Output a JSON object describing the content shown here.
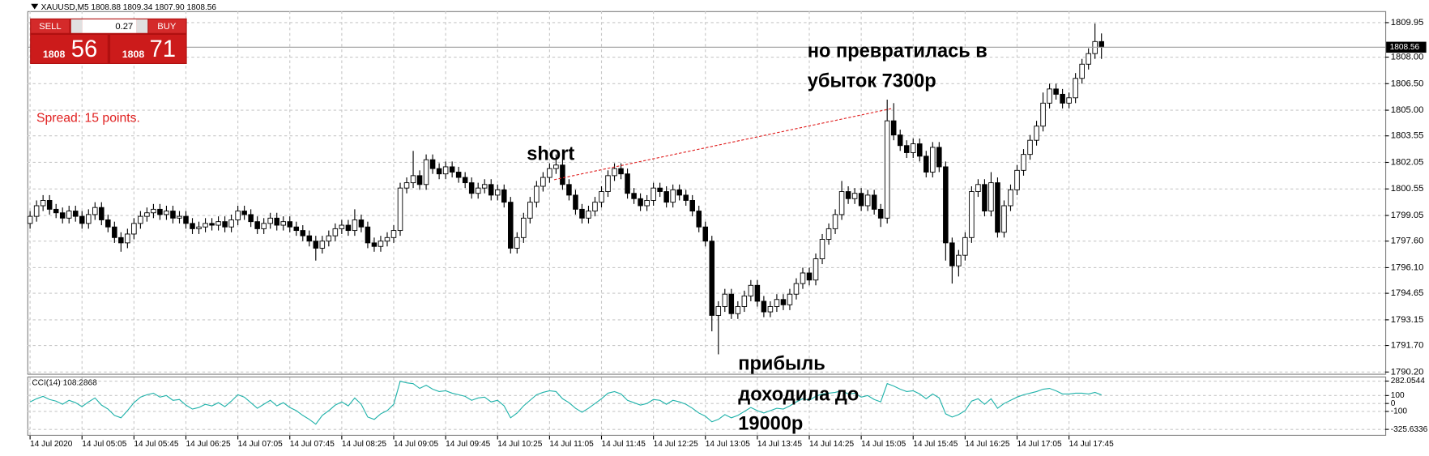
{
  "window": {
    "header": "XAUUSD,M5  1808.88 1809.34 1807.90 1808.56",
    "trade_panel": {
      "sell": "SELL",
      "lot": "0.27",
      "buy": "BUY",
      "bid_big": "1808",
      "bid_small": "56",
      "ask_big": "1808",
      "ask_small": "71"
    },
    "spread": "Spread: 15 points."
  },
  "chart_data": [
    {
      "type": "candlestick",
      "annotations": [
        "short",
        "но превратилась в",
        "убыток 7300р",
        "прибыль",
        "доходила до",
        "19000р"
      ],
      "categories": [
        "14 Jul 2020",
        null,
        null,
        null,
        null,
        null,
        null,
        null,
        "14 Jul 05:05",
        null,
        null,
        null,
        null,
        null,
        null,
        null,
        "14 Jul 05:45",
        null,
        null,
        null,
        null,
        null,
        null,
        null,
        "14 Jul 06:25",
        null,
        null,
        null,
        null,
        null,
        null,
        null,
        "14 Jul 07:05",
        null,
        null,
        null,
        null,
        null,
        null,
        null,
        "14 Jul 07:45",
        null,
        null,
        null,
        null,
        null,
        null,
        null,
        "14 Jul 08:25",
        null,
        null,
        null,
        null,
        null,
        null,
        null,
        "14 Jul 09:05",
        null,
        null,
        null,
        null,
        null,
        null,
        null,
        "14 Jul 09:45",
        null,
        null,
        null,
        null,
        null,
        null,
        null,
        "14 Jul 10:25",
        null,
        null,
        null,
        null,
        null,
        null,
        null,
        "14 Jul 11:05",
        null,
        null,
        null,
        null,
        null,
        null,
        null,
        "14 Jul 11:45",
        null,
        null,
        null,
        null,
        null,
        null,
        null,
        "14 Jul 12:25",
        null,
        null,
        null,
        null,
        null,
        null,
        null,
        "14 Jul 13:05",
        null,
        null,
        null,
        null,
        null,
        null,
        null,
        "14 Jul 13:45",
        null,
        null,
        null,
        null,
        null,
        null,
        null,
        "14 Jul 14:25",
        null,
        null,
        null,
        null,
        null,
        null,
        null,
        "14 Jul 15:05",
        null,
        null,
        null,
        null,
        null,
        null,
        null,
        "14 Jul 15:45",
        null,
        null,
        null,
        null,
        null,
        null,
        null,
        "14 Jul 16:25",
        null,
        null,
        null,
        null,
        null,
        null,
        null,
        "14 Jul 17:05",
        null,
        null,
        null,
        null,
        null,
        null,
        null,
        "14 Jul 17:45",
        null,
        null,
        null,
        null,
        null
      ],
      "open": [
        1798.6,
        1799.0,
        1799.6,
        1799.9,
        1799.4,
        1799.2,
        1798.9,
        1799.3,
        1799.0,
        1798.6,
        1799.1,
        1799.5,
        1798.8,
        1798.4,
        1797.8,
        1797.5,
        1798.0,
        1798.6,
        1799.0,
        1799.2,
        1799.4,
        1799.1,
        1799.3,
        1798.9,
        1799.0,
        1798.6,
        1798.3,
        1798.4,
        1798.6,
        1798.5,
        1798.7,
        1798.4,
        1798.8,
        1799.3,
        1799.1,
        1798.7,
        1798.3,
        1798.6,
        1798.9,
        1798.5,
        1798.7,
        1798.4,
        1798.2,
        1797.9,
        1797.6,
        1797.2,
        1797.6,
        1797.9,
        1798.3,
        1798.5,
        1798.2,
        1798.8,
        1798.4,
        1797.5,
        1797.3,
        1797.6,
        1797.8,
        1798.2,
        1800.6,
        1800.9,
        1801.3,
        1800.8,
        1802.2,
        1801.7,
        1801.4,
        1801.8,
        1801.5,
        1801.2,
        1800.9,
        1800.3,
        1800.6,
        1800.8,
        1800.2,
        1800.5,
        1799.8,
        1797.2,
        1797.8,
        1798.9,
        1799.8,
        1800.7,
        1801.2,
        1801.7,
        1801.9,
        1800.8,
        1800.2,
        1799.4,
        1798.9,
        1799.3,
        1799.8,
        1800.4,
        1801.3,
        1801.7,
        1801.4,
        1800.3,
        1800.0,
        1799.6,
        1799.9,
        1800.6,
        1800.4,
        1799.8,
        1800.5,
        1800.2,
        1799.9,
        1799.3,
        1798.4,
        1797.6,
        1793.4,
        1793.9,
        1794.6,
        1793.5,
        1793.9,
        1794.5,
        1795.1,
        1794.2,
        1793.6,
        1793.9,
        1794.3,
        1794.0,
        1794.6,
        1795.2,
        1795.8,
        1795.4,
        1796.6,
        1797.7,
        1798.3,
        1799.1,
        1800.4,
        1800.0,
        1800.3,
        1799.6,
        1800.2,
        1799.4,
        1798.9,
        1804.4,
        1803.6,
        1803.0,
        1802.6,
        1803.1,
        1802.4,
        1801.5,
        1802.9,
        1801.8,
        1797.5,
        1796.2,
        1796.8,
        1797.8,
        1800.4,
        1800.8,
        1799.3,
        1800.9,
        1798.1,
        1799.6,
        1800.5,
        1801.6,
        1802.5,
        1803.3,
        1804.1,
        1805.4,
        1806.2,
        1805.9,
        1805.4,
        1805.7,
        1806.8,
        1807.6,
        1808.2,
        1808.88
      ],
      "high": [
        1799.3,
        1799.9,
        1800.2,
        1800.2,
        1799.7,
        1799.5,
        1799.6,
        1799.6,
        1799.3,
        1799.4,
        1799.8,
        1799.8,
        1799.1,
        1798.7,
        1798.1,
        1798.3,
        1798.9,
        1799.3,
        1799.5,
        1799.7,
        1799.7,
        1799.6,
        1799.6,
        1799.3,
        1799.3,
        1798.9,
        1798.7,
        1798.9,
        1798.9,
        1799.0,
        1799.0,
        1799.1,
        1799.6,
        1799.6,
        1799.4,
        1799.0,
        1798.9,
        1799.2,
        1799.2,
        1799.0,
        1799.0,
        1798.7,
        1798.5,
        1798.2,
        1797.9,
        1797.9,
        1798.2,
        1798.6,
        1798.8,
        1798.8,
        1799.4,
        1799.1,
        1798.7,
        1797.8,
        1797.9,
        1798.1,
        1798.5,
        1800.9,
        1801.2,
        1802.7,
        1801.6,
        1802.5,
        1802.5,
        1802.0,
        1802.1,
        1802.1,
        1801.8,
        1801.5,
        1801.2,
        1800.9,
        1801.1,
        1801.1,
        1800.8,
        1800.8,
        1800.1,
        1798.1,
        1799.2,
        1800.1,
        1801.0,
        1801.5,
        1802.0,
        1802.5,
        1802.2,
        1801.1,
        1800.5,
        1799.7,
        1799.6,
        1800.1,
        1800.7,
        1801.6,
        1802.0,
        1802.0,
        1801.7,
        1800.6,
        1800.3,
        1800.2,
        1800.9,
        1800.9,
        1800.7,
        1800.8,
        1800.8,
        1800.5,
        1800.2,
        1799.6,
        1798.7,
        1797.9,
        1794.2,
        1794.9,
        1794.9,
        1794.2,
        1794.8,
        1795.4,
        1795.4,
        1794.5,
        1794.2,
        1794.6,
        1794.6,
        1794.9,
        1795.5,
        1796.1,
        1796.1,
        1796.9,
        1798.0,
        1798.6,
        1799.4,
        1801.0,
        1800.7,
        1800.6,
        1800.6,
        1800.5,
        1800.5,
        1799.7,
        1805.6,
        1805.4,
        1803.9,
        1803.3,
        1803.4,
        1803.4,
        1802.7,
        1803.2,
        1803.2,
        1802.1,
        1797.8,
        1797.1,
        1798.1,
        1800.7,
        1801.1,
        1801.1,
        1801.5,
        1801.2,
        1799.9,
        1800.8,
        1801.9,
        1802.8,
        1803.6,
        1804.4,
        1806.0,
        1806.5,
        1806.5,
        1806.2,
        1806.0,
        1807.1,
        1807.9,
        1808.5,
        1809.9,
        1809.34
      ],
      "low": [
        1798.3,
        1798.7,
        1799.3,
        1799.1,
        1798.9,
        1798.6,
        1798.6,
        1798.7,
        1798.3,
        1798.3,
        1798.8,
        1798.5,
        1798.1,
        1797.5,
        1797.0,
        1797.2,
        1797.7,
        1798.3,
        1798.7,
        1798.9,
        1798.8,
        1798.8,
        1798.6,
        1798.6,
        1798.3,
        1798.0,
        1798.0,
        1798.1,
        1798.2,
        1798.2,
        1798.1,
        1798.1,
        1798.5,
        1798.8,
        1798.4,
        1798.0,
        1798.0,
        1798.3,
        1798.2,
        1798.2,
        1798.1,
        1797.9,
        1797.6,
        1797.3,
        1796.5,
        1796.9,
        1797.3,
        1797.6,
        1798.0,
        1797.9,
        1797.9,
        1798.1,
        1797.2,
        1797.0,
        1797.0,
        1797.3,
        1797.5,
        1797.9,
        1800.3,
        1800.6,
        1800.5,
        1800.5,
        1801.4,
        1801.1,
        1801.1,
        1801.2,
        1800.9,
        1800.6,
        1800.0,
        1800.0,
        1800.3,
        1799.9,
        1799.9,
        1799.5,
        1796.9,
        1796.9,
        1797.5,
        1798.6,
        1799.5,
        1800.4,
        1800.9,
        1801.4,
        1800.5,
        1799.9,
        1799.1,
        1798.6,
        1798.6,
        1799.0,
        1799.5,
        1800.1,
        1801.0,
        1801.1,
        1800.0,
        1799.7,
        1799.3,
        1799.3,
        1799.6,
        1800.1,
        1799.5,
        1799.5,
        1799.9,
        1799.6,
        1799.0,
        1798.1,
        1797.3,
        1792.5,
        1791.2,
        1793.6,
        1793.2,
        1793.2,
        1793.6,
        1794.2,
        1793.9,
        1793.3,
        1793.3,
        1793.6,
        1793.7,
        1793.7,
        1794.3,
        1794.9,
        1795.1,
        1795.1,
        1796.3,
        1797.4,
        1798.0,
        1798.8,
        1799.7,
        1799.7,
        1799.3,
        1799.3,
        1799.1,
        1798.4,
        1798.6,
        1803.3,
        1802.7,
        1802.3,
        1802.3,
        1802.1,
        1801.2,
        1801.2,
        1801.5,
        1796.5,
        1795.2,
        1795.6,
        1796.5,
        1797.5,
        1800.1,
        1799.0,
        1799.0,
        1797.8,
        1797.8,
        1799.3,
        1800.2,
        1801.3,
        1802.2,
        1803.0,
        1803.8,
        1805.1,
        1805.6,
        1805.1,
        1805.1,
        1805.4,
        1806.5,
        1807.3,
        1807.9,
        1807.9
      ],
      "close": [
        1799.0,
        1799.6,
        1799.9,
        1799.4,
        1799.2,
        1798.9,
        1799.3,
        1799.0,
        1798.6,
        1799.1,
        1799.5,
        1798.8,
        1798.4,
        1797.8,
        1797.5,
        1798.0,
        1798.6,
        1799.0,
        1799.2,
        1799.4,
        1799.1,
        1799.3,
        1798.9,
        1799.0,
        1798.6,
        1798.3,
        1798.4,
        1798.6,
        1798.5,
        1798.7,
        1798.4,
        1798.8,
        1799.3,
        1799.1,
        1798.7,
        1798.3,
        1798.6,
        1798.9,
        1798.5,
        1798.7,
        1798.4,
        1798.2,
        1797.9,
        1797.6,
        1797.2,
        1797.6,
        1797.9,
        1798.3,
        1798.5,
        1798.2,
        1798.8,
        1798.4,
        1797.5,
        1797.3,
        1797.6,
        1797.8,
        1798.2,
        1800.6,
        1800.9,
        1801.3,
        1800.8,
        1802.2,
        1801.7,
        1801.4,
        1801.8,
        1801.5,
        1801.2,
        1800.9,
        1800.3,
        1800.6,
        1800.8,
        1800.2,
        1800.5,
        1799.8,
        1797.2,
        1797.8,
        1798.9,
        1799.8,
        1800.7,
        1801.2,
        1801.7,
        1801.9,
        1800.8,
        1800.2,
        1799.4,
        1798.9,
        1799.3,
        1799.8,
        1800.4,
        1801.3,
        1801.7,
        1801.4,
        1800.3,
        1800.0,
        1799.6,
        1799.9,
        1800.6,
        1800.4,
        1799.8,
        1800.5,
        1800.2,
        1799.9,
        1799.3,
        1798.4,
        1797.6,
        1793.4,
        1793.9,
        1794.6,
        1793.5,
        1793.9,
        1794.5,
        1795.1,
        1794.2,
        1793.6,
        1793.9,
        1794.3,
        1794.0,
        1794.6,
        1795.2,
        1795.8,
        1795.4,
        1796.6,
        1797.7,
        1798.3,
        1799.1,
        1800.4,
        1800.0,
        1800.3,
        1799.6,
        1800.2,
        1799.4,
        1798.9,
        1804.4,
        1803.6,
        1803.0,
        1802.6,
        1803.1,
        1802.4,
        1801.5,
        1802.9,
        1801.8,
        1797.5,
        1796.2,
        1796.8,
        1797.8,
        1800.4,
        1800.8,
        1799.3,
        1800.9,
        1798.1,
        1799.6,
        1800.5,
        1801.6,
        1802.5,
        1803.3,
        1804.1,
        1805.4,
        1806.2,
        1805.9,
        1805.4,
        1805.7,
        1806.8,
        1807.6,
        1808.2,
        1808.88,
        1808.56
      ],
      "up_color": "#ffffff",
      "down_color": "#000000",
      "ylim": [
        1790.1,
        1810.6
      ],
      "yticks": [
        1809.95,
        {
          "value": 1808,
          "label": "1808.00"
        },
        {
          "value": 1806.5,
          "label": "1806.50"
        },
        {
          "value": 1805,
          "label": "1805.00"
        },
        1803.55,
        1802.05,
        1800.55,
        1799.05,
        {
          "value": 1797.6,
          "label": "1797.60"
        },
        {
          "value": 1796.1,
          "label": "1796.10"
        },
        1794.65,
        1793.15,
        {
          "value": 1791.7,
          "label": "1791.70"
        },
        {
          "value": 1790.2,
          "label": "1790.20"
        }
      ],
      "grid": true
    },
    {
      "type": "line",
      "title": "CCI(14) 108.2868",
      "color": "#20b2aa",
      "values": [
        20,
        60,
        90,
        50,
        30,
        -10,
        40,
        10,
        -40,
        20,
        70,
        -20,
        -70,
        -150,
        -180,
        -90,
        10,
        80,
        110,
        130,
        80,
        100,
        40,
        50,
        -20,
        -70,
        -50,
        -10,
        -30,
        10,
        -40,
        30,
        110,
        80,
        10,
        -60,
        -10,
        40,
        -30,
        10,
        -50,
        -90,
        -150,
        -200,
        -260,
        -150,
        -90,
        -20,
        20,
        -30,
        70,
        -10,
        -170,
        -200,
        -130,
        -90,
        -10,
        280,
        260,
        250,
        190,
        230,
        180,
        150,
        160,
        130,
        110,
        90,
        40,
        70,
        80,
        20,
        40,
        -30,
        -180,
        -120,
        -30,
        40,
        110,
        140,
        160,
        150,
        60,
        10,
        -60,
        -110,
        -60,
        0,
        60,
        130,
        150,
        120,
        40,
        10,
        -20,
        0,
        50,
        40,
        -10,
        40,
        20,
        -10,
        -60,
        -120,
        -160,
        -230,
        -200,
        -140,
        -180,
        -150,
        -100,
        -50,
        -90,
        -120,
        -90,
        -60,
        -70,
        -30,
        20,
        60,
        40,
        90,
        120,
        130,
        140,
        160,
        120,
        130,
        80,
        100,
        50,
        20,
        250,
        220,
        180,
        150,
        160,
        120,
        60,
        120,
        70,
        -130,
        -170,
        -140,
        -90,
        30,
        60,
        -10,
        60,
        -60,
        0,
        40,
        80,
        110,
        130,
        150,
        180,
        190,
        160,
        120,
        120,
        130,
        130,
        120,
        140,
        108.2868
      ],
      "ylim": [
        -325.6336,
        282.0544
      ],
      "yticks": [
        282.0544,
        100,
        0,
        -100,
        -325.6336
      ],
      "grid": true
    }
  ]
}
